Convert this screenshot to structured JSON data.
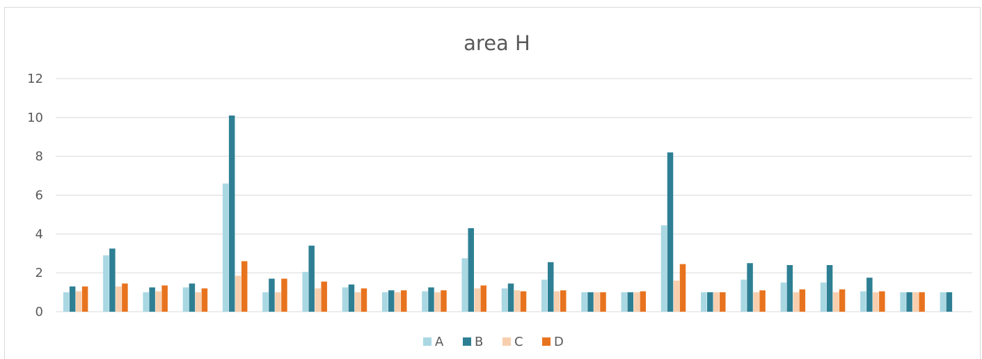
{
  "chart_data": {
    "type": "bar",
    "title": "area H",
    "xlabel": "",
    "ylabel": "",
    "ylim": [
      0,
      12
    ],
    "yticks": [
      "0",
      "2",
      "4",
      "6",
      "8",
      "10",
      "12"
    ],
    "grid": true,
    "legend_position": "bottom",
    "categories": [
      "",
      "",
      "",
      "",
      "",
      "",
      "",
      "",
      "",
      "",
      "",
      "",
      "",
      "",
      "",
      "",
      "",
      "",
      "",
      "",
      "",
      "",
      ""
    ],
    "series": [
      {
        "name": "A",
        "color": "#a9d8e3",
        "values": [
          1.0,
          2.9,
          1.0,
          1.25,
          6.6,
          1.0,
          2.05,
          1.25,
          1.0,
          1.05,
          2.75,
          1.2,
          1.65,
          1.0,
          1.0,
          4.45,
          1.0,
          1.65,
          1.5,
          1.5,
          1.05,
          1.0,
          1.0
        ]
      },
      {
        "name": "B",
        "color": "#2e7f93",
        "values": [
          1.3,
          3.25,
          1.25,
          1.45,
          10.1,
          1.7,
          3.4,
          1.4,
          1.1,
          1.25,
          4.3,
          1.45,
          2.55,
          1.0,
          1.0,
          8.2,
          1.0,
          2.5,
          2.4,
          2.4,
          1.75,
          1.0,
          1.0
        ]
      },
      {
        "name": "C",
        "color": "#f8cfae",
        "values": [
          1.05,
          1.3,
          1.05,
          1.0,
          1.85,
          1.0,
          1.2,
          1.0,
          1.0,
          1.0,
          1.2,
          1.1,
          1.05,
          1.0,
          1.0,
          1.6,
          1.0,
          1.0,
          1.0,
          1.0,
          1.0,
          1.0,
          null
        ]
      },
      {
        "name": "D",
        "color": "#e8731f",
        "values": [
          1.3,
          1.45,
          1.35,
          1.2,
          2.6,
          1.7,
          1.55,
          1.2,
          1.1,
          1.1,
          1.35,
          1.05,
          1.1,
          1.0,
          1.05,
          2.45,
          1.0,
          1.1,
          1.15,
          1.15,
          1.05,
          1.0,
          null
        ]
      }
    ]
  }
}
